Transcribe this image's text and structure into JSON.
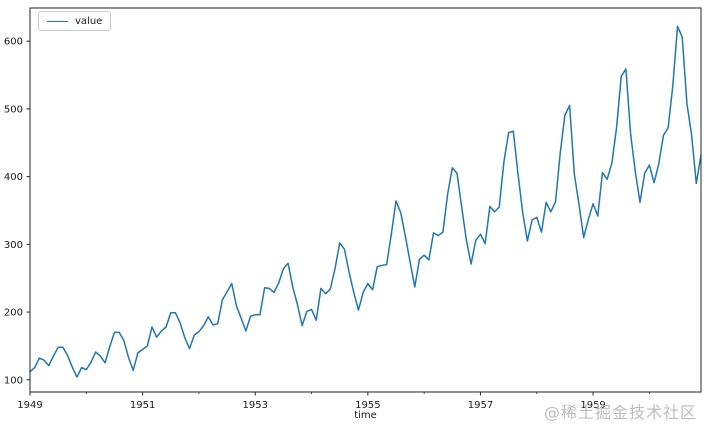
{
  "watermark": {
    "text": "@稀土掘金技术社区"
  },
  "chart_data": {
    "type": "line",
    "title": "",
    "xlabel": "time",
    "ylabel": "",
    "grid": false,
    "legend": {
      "position": "upper left",
      "entries": [
        "value"
      ]
    },
    "line_color": "#1f77b4",
    "frame_color": "#262626",
    "x_start_year": 1949,
    "x_frequency": "monthly",
    "x_tick_labels": [
      "1949",
      "1951",
      "1953",
      "1955",
      "1957",
      "1959"
    ],
    "x_minor_tick_years": [
      1950,
      1952,
      1954,
      1956,
      1958,
      1960
    ],
    "y_ticks": [
      100,
      200,
      300,
      400,
      500,
      600
    ],
    "ylim": [
      82,
      649
    ],
    "series": [
      {
        "name": "value",
        "values": [
          112,
          118,
          132,
          129,
          121,
          135,
          148,
          148,
          136,
          119,
          104,
          118,
          115,
          126,
          141,
          135,
          125,
          149,
          170,
          170,
          158,
          133,
          114,
          140,
          145,
          150,
          178,
          163,
          172,
          178,
          199,
          199,
          184,
          162,
          146,
          166,
          171,
          180,
          193,
          181,
          183,
          218,
          230,
          242,
          209,
          191,
          172,
          194,
          196,
          196,
          236,
          235,
          229,
          243,
          264,
          272,
          237,
          211,
          180,
          201,
          204,
          188,
          235,
          227,
          234,
          264,
          302,
          293,
          259,
          229,
          203,
          229,
          242,
          233,
          267,
          269,
          270,
          315,
          364,
          347,
          312,
          274,
          237,
          278,
          284,
          277,
          317,
          313,
          318,
          374,
          413,
          405,
          355,
          306,
          271,
          306,
          315,
          301,
          356,
          348,
          355,
          422,
          465,
          467,
          404,
          347,
          305,
          336,
          340,
          318,
          362,
          348,
          363,
          435,
          491,
          505,
          404,
          359,
          310,
          337,
          360,
          342,
          406,
          396,
          420,
          472,
          548,
          559,
          463,
          407,
          362,
          405,
          417,
          391,
          419,
          461,
          472,
          535,
          622,
          606,
          508,
          461,
          390,
          432
        ]
      }
    ]
  }
}
